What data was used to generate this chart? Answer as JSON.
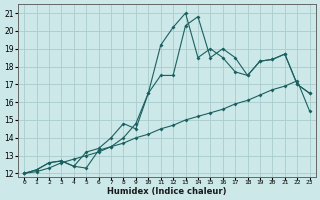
{
  "xlabel": "Humidex (Indice chaleur)",
  "bg_color": "#cce8e8",
  "grid_color": "#aacccc",
  "line_color": "#1a6060",
  "xlim": [
    -0.5,
    23.5
  ],
  "ylim": [
    11.8,
    21.5
  ],
  "xticks": [
    0,
    1,
    2,
    3,
    4,
    5,
    6,
    7,
    8,
    9,
    10,
    11,
    12,
    13,
    14,
    15,
    16,
    17,
    18,
    19,
    20,
    21,
    22,
    23
  ],
  "yticks": [
    12,
    13,
    14,
    15,
    16,
    17,
    18,
    19,
    20,
    21
  ],
  "line1_x": [
    0,
    1,
    2,
    3,
    4,
    5,
    6,
    7,
    8,
    9,
    10,
    11,
    12,
    13,
    14,
    15,
    16,
    17,
    18,
    19,
    20,
    21,
    22,
    23
  ],
  "line1_y": [
    12.0,
    12.1,
    12.3,
    12.6,
    12.8,
    13.0,
    13.2,
    13.5,
    13.7,
    14.0,
    14.2,
    14.5,
    14.7,
    15.0,
    15.2,
    15.4,
    15.6,
    15.9,
    16.1,
    16.4,
    16.7,
    16.9,
    17.2,
    15.5
  ],
  "line2_x": [
    0,
    1,
    2,
    3,
    4,
    5,
    6,
    7,
    8,
    9,
    10,
    11,
    12,
    13,
    14,
    15,
    16,
    17,
    18,
    19,
    20,
    21,
    22,
    23
  ],
  "line2_y": [
    12.0,
    12.2,
    12.6,
    12.7,
    12.4,
    12.3,
    13.3,
    13.5,
    14.0,
    14.8,
    16.5,
    17.5,
    17.5,
    20.3,
    20.8,
    18.5,
    19.0,
    18.5,
    17.5,
    18.3,
    18.4,
    18.7,
    17.0,
    16.5
  ],
  "line3_x": [
    0,
    1,
    2,
    3,
    4,
    5,
    6,
    7,
    8,
    9,
    10,
    11,
    12,
    13,
    14,
    15,
    16,
    17,
    18,
    19,
    20,
    21,
    22,
    23
  ],
  "line3_y": [
    12.0,
    12.2,
    12.6,
    12.7,
    12.4,
    13.2,
    13.4,
    14.0,
    14.8,
    14.5,
    16.5,
    19.2,
    20.2,
    21.0,
    18.5,
    19.0,
    18.5,
    17.7,
    17.5,
    18.3,
    18.4,
    18.7,
    17.0,
    16.5
  ]
}
